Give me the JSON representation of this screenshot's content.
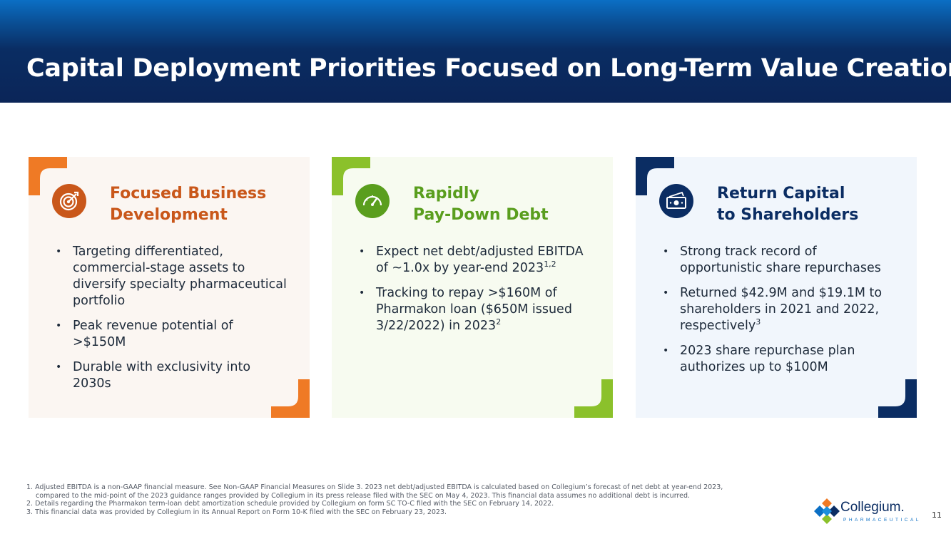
{
  "slide": {
    "title": "Capital Deployment Priorities Focused on Long-Term Value Creation",
    "page_number": "11"
  },
  "cards": [
    {
      "icon": "target-icon",
      "accent": "#c9571a",
      "corner_color": "#ef7a25",
      "background": "#fbf6f2",
      "title_line1": "Focused Business",
      "title_line2": "Development",
      "bullets": [
        {
          "text": "Targeting differentiated, commercial-stage assets to diversify specialty pharmaceutical portfolio",
          "sup": ""
        },
        {
          "text": "Peak revenue potential of >$150M",
          "sup": ""
        },
        {
          "text": "Durable with exclusivity into 2030s",
          "sup": ""
        }
      ]
    },
    {
      "icon": "speedometer-icon",
      "accent": "#5a9e1e",
      "corner_color": "#8bc12b",
      "background": "#f7fbf0",
      "title_line1": "Rapidly",
      "title_line2": "Pay-Down Debt",
      "bullets": [
        {
          "text": "Expect net debt/adjusted EBITDA of ~1.0x by year-end 2023",
          "sup": "1,2"
        },
        {
          "text": "Tracking to repay >$160M of Pharmakon loan ($650M issued 3/22/2022) in 2023",
          "sup": "2"
        }
      ]
    },
    {
      "icon": "cash-icon",
      "accent": "#0b2d63",
      "corner_color": "#0b2d63",
      "background": "#f1f6fc",
      "title_line1": "Return Capital",
      "title_line2": "to Shareholders",
      "bullets": [
        {
          "text": "Strong track record of opportunistic share repurchases",
          "sup": ""
        },
        {
          "text": "Returned $42.9M and $19.1M to shareholders in 2021 and 2022, respectively",
          "sup": "3"
        },
        {
          "text": "2023 share repurchase plan authorizes up to $100M",
          "sup": ""
        }
      ]
    }
  ],
  "footnotes": {
    "n1a": "1. Adjusted EBITDA is a non-GAAP financial measure. See Non-GAAP Financial Measures on Slide 3. 2023 net debt/adjusted EBITDA is calculated based on Collegium’s forecast of net debt at year-end 2023,",
    "n1b": "compared to the mid-point of the 2023 guidance ranges provided by Collegium in its press release filed with the SEC on May 4, 2023. This financial data assumes no additional debt is incurred.",
    "n2": "2. Details regarding the Pharmakon term-loan debt amortization schedule provided by Collegium on form SC TO-C filed with the SEC on February 14, 2022.",
    "n3": "3. This financial data was provided by Collegium in its Annual Report on Form 10-K filed with the SEC on February 23, 2023."
  },
  "logo": {
    "wordmark": "Collegium.",
    "tagline": "PHARMACEUTICAL",
    "icon": "collegium-logo-icon"
  }
}
